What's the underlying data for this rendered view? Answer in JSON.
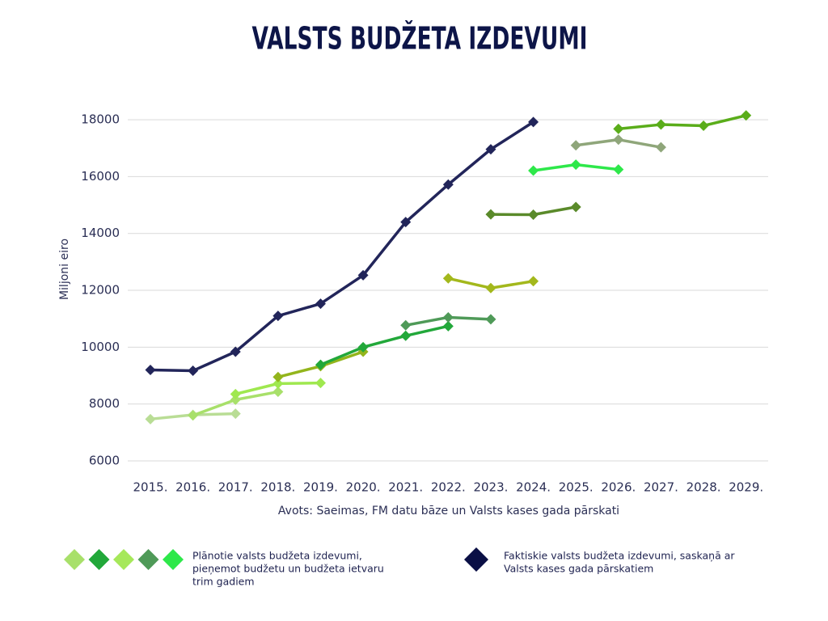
{
  "chart_data": {
    "type": "line",
    "title": "VALSTS BUDŽETA IZDEVUMI",
    "y_label": "Miljoni eiro",
    "source": "Avots: Saeimas, FM datu bāze un Valsts kases gada pārskati",
    "categories": [
      "2015.",
      "2016.",
      "2017.",
      "2018.",
      "2019.",
      "2020.",
      "2021.",
      "2022.",
      "2023.",
      "2024.",
      "2025.",
      "2026.",
      "2027.",
      "2028.",
      "2029."
    ],
    "ylim": [
      6000,
      18500
    ],
    "yticks": [
      6000,
      8000,
      10000,
      12000,
      14000,
      16000,
      18000
    ],
    "grid": true,
    "series": [
      {
        "color": "#b9dd95",
        "values": [
          7470,
          7620,
          7660,
          null,
          null,
          null,
          null,
          null,
          null,
          null,
          null,
          null,
          null,
          null,
          null
        ]
      },
      {
        "color": "#a8e06a",
        "values": [
          null,
          7600,
          8150,
          8430,
          null,
          null,
          null,
          null,
          null,
          null,
          null,
          null,
          null,
          null,
          null
        ]
      },
      {
        "color": "#9fe84f",
        "values": [
          null,
          null,
          8350,
          8720,
          8740,
          null,
          null,
          null,
          null,
          null,
          null,
          null,
          null,
          null,
          null
        ]
      },
      {
        "color": "#93b51c",
        "values": [
          null,
          null,
          null,
          8950,
          9330,
          9840,
          null,
          null,
          null,
          null,
          null,
          null,
          null,
          null,
          null
        ]
      },
      {
        "color": "#22a83a",
        "values": [
          null,
          null,
          null,
          null,
          9380,
          10000,
          10400,
          10740,
          null,
          null,
          null,
          null,
          null,
          null,
          null
        ]
      },
      {
        "color": "#4f9a58",
        "values": [
          null,
          null,
          null,
          null,
          null,
          null,
          10770,
          11050,
          10980,
          null,
          null,
          null,
          null,
          null,
          null
        ]
      },
      {
        "color": "#a3b81c",
        "values": [
          null,
          null,
          null,
          null,
          null,
          null,
          null,
          12420,
          12080,
          12320,
          null,
          null,
          null,
          null,
          null
        ]
      },
      {
        "color": "#5a8a2a",
        "values": [
          null,
          null,
          null,
          null,
          null,
          null,
          null,
          null,
          14670,
          14660,
          14930,
          null,
          null,
          null,
          null
        ]
      },
      {
        "color": "#2ee84a",
        "values": [
          null,
          null,
          null,
          null,
          null,
          null,
          null,
          null,
          null,
          16210,
          16420,
          16250,
          null,
          null,
          null
        ]
      },
      {
        "color": "#8fa67a",
        "values": [
          null,
          null,
          null,
          null,
          null,
          null,
          null,
          null,
          null,
          null,
          17100,
          17300,
          17030,
          null,
          null
        ]
      },
      {
        "color": "#5aad1a",
        "values": [
          null,
          null,
          null,
          null,
          null,
          null,
          null,
          null,
          null,
          null,
          null,
          17680,
          17830,
          17790,
          18150
        ]
      },
      {
        "color": "#22255a",
        "values": [
          9200,
          9170,
          9840,
          11100,
          11530,
          12530,
          14400,
          15720,
          16960,
          17920,
          null,
          null,
          null,
          null,
          null
        ]
      }
    ],
    "legend": [
      {
        "lines": [
          "Plānotie valsts budžeta izdevumi,",
          "pieņemot budžetu un budžeta ietvaru",
          "trim gadiem"
        ],
        "colors": [
          "#a8e06a",
          "#22a83a",
          "#a6e85a",
          "#4f9a58",
          "#2ee84a"
        ]
      },
      {
        "lines": [
          "Faktiskie valsts budžeta izdevumi, saskaņā ar",
          "Valsts kases gada pārskatiem"
        ],
        "colors": [
          "#0a0f45"
        ]
      }
    ]
  }
}
